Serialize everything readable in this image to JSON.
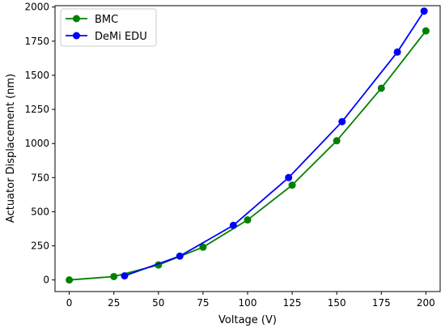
{
  "chart_data": {
    "type": "line",
    "title": "",
    "xlabel": "Voltage (V)",
    "ylabel": "Actuator Displacement (nm)",
    "xlim": [
      -8,
      208
    ],
    "ylim": [
      -85,
      2010
    ],
    "xticks": [
      0,
      25,
      50,
      75,
      100,
      125,
      150,
      175,
      200
    ],
    "yticks": [
      0,
      250,
      500,
      750,
      1000,
      1250,
      1500,
      1750,
      2000
    ],
    "grid": false,
    "legend_position": "top-left",
    "series": [
      {
        "name": "BMC",
        "color": "#008000",
        "marker": "circle",
        "x": [
          0,
          25,
          50,
          75,
          100,
          125,
          150,
          175,
          200
        ],
        "y": [
          0,
          25,
          110,
          240,
          440,
          695,
          1020,
          1405,
          1825
        ]
      },
      {
        "name": "DeMi EDU",
        "color": "#0000ff",
        "marker": "circle",
        "x": [
          31,
          62,
          92,
          123,
          153,
          184,
          199
        ],
        "y": [
          30,
          175,
          400,
          750,
          1160,
          1670,
          1970
        ]
      }
    ]
  }
}
